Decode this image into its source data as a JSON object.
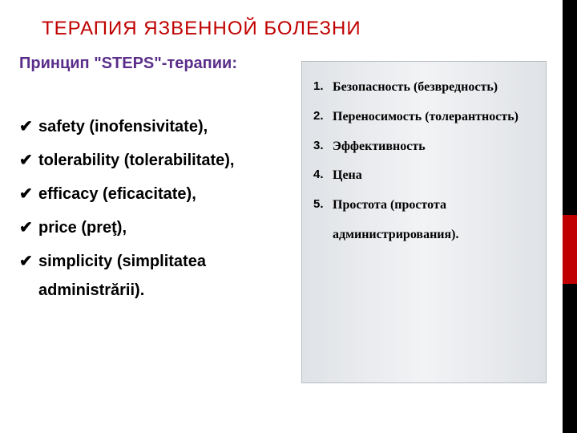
{
  "title": {
    "text": "ТЕРАПИЯ ЯЗВЕННОЙ БОЛЕЗНИ",
    "color": "#c00000"
  },
  "subtitle": {
    "text": "Принцип \"STEPS\"-терапии:",
    "color": "#5a2e8a"
  },
  "left_list": {
    "bullet": "✔",
    "items": [
      "safety (inofensivitate),",
      "tolerability (tolerabilitate),",
      "efficacy (eficacitate),",
      "price (preţ),",
      "simplicity (simplitatea administrării)."
    ]
  },
  "right_box": {
    "background_gradient": [
      "#dfe2e6",
      "#f2f3f5",
      "#dfe2e6"
    ],
    "border_color": "#b8bcc2",
    "items": [
      "Безопасность (безвредность)",
      "Переносимость (толерантность)",
      "Эффективность",
      "Цена",
      "Простота (простота администрирования)."
    ]
  },
  "edge": {
    "black": "#000000",
    "red": "#c00000"
  }
}
